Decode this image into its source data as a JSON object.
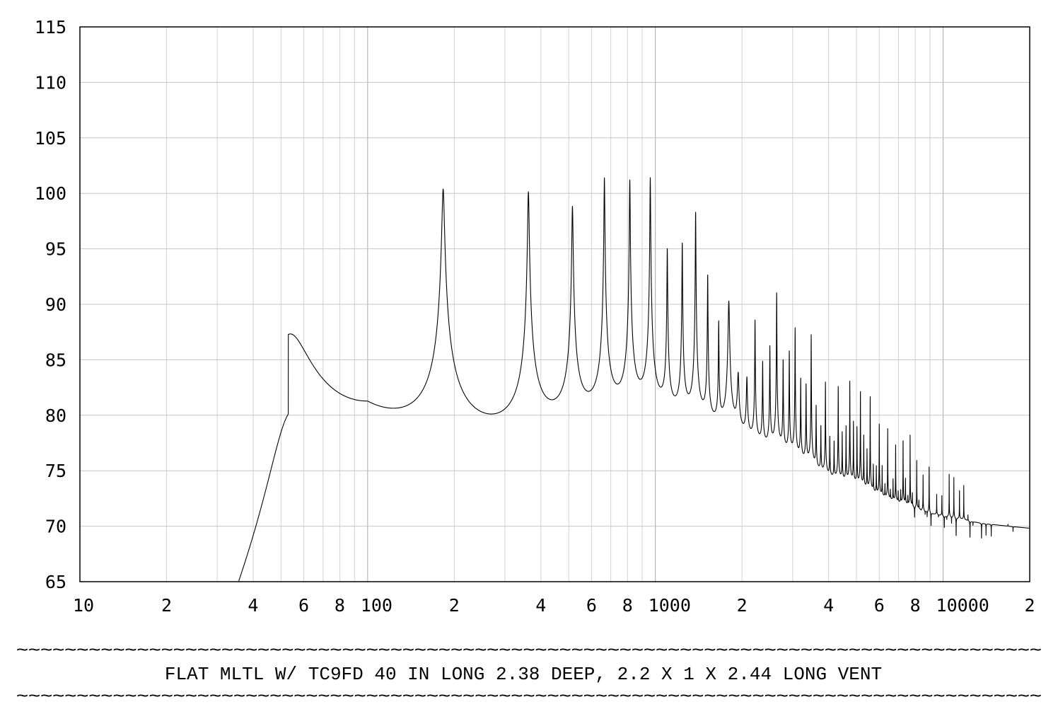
{
  "chart_data": {
    "type": "line",
    "title": "FLAT MLTL W/ TC9FD 40 IN LONG 2.38 DEEP, 2.2 X 1 X 2.44 LONG VENT",
    "title_rule": "~~~~~~~~~~~~~~~~~~~~~~~~~~~~~~~~~~~~~~~~~~~~~~~~~~~~~~~~~~~~~~~~~~~~~~~~~~~~~~~~~~~~~",
    "xlabel": "",
    "ylabel": "",
    "x_scale": "log",
    "xlim": [
      10,
      20000
    ],
    "ylim": [
      65,
      115
    ],
    "grid": true,
    "x_tick_labels": [
      {
        "value": 10,
        "label": "10"
      },
      {
        "value": 20,
        "label": "2"
      },
      {
        "value": 40,
        "label": "4"
      },
      {
        "value": 60,
        "label": "6"
      },
      {
        "value": 80,
        "label": "8"
      },
      {
        "value": 100,
        "label": "100"
      },
      {
        "value": 200,
        "label": "2"
      },
      {
        "value": 400,
        "label": "4"
      },
      {
        "value": 600,
        "label": "6"
      },
      {
        "value": 800,
        "label": "8"
      },
      {
        "value": 1000,
        "label": "1000"
      },
      {
        "value": 2000,
        "label": "2"
      },
      {
        "value": 4000,
        "label": "4"
      },
      {
        "value": 6000,
        "label": "6"
      },
      {
        "value": 8000,
        "label": "8"
      },
      {
        "value": 10000,
        "label": "10000"
      },
      {
        "value": 20000,
        "label": "2"
      }
    ],
    "y_ticks": [
      65,
      70,
      75,
      80,
      85,
      90,
      95,
      100,
      105,
      110,
      115
    ],
    "series": [
      {
        "name": "",
        "color": "#000000",
        "baseline": 68.8,
        "resonances": [
          {
            "f": 53,
            "peak": 90.9,
            "q": 3.5
          },
          {
            "f": 183,
            "peak": 100.0,
            "q": 55
          },
          {
            "f": 362,
            "peak": 99.7,
            "q": 90
          },
          {
            "f": 515,
            "peak": 98.2,
            "q": 110
          },
          {
            "f": 665,
            "peak": 100.9,
            "q": 160
          },
          {
            "f": 815,
            "peak": 100.7,
            "q": 180
          },
          {
            "f": 960,
            "peak": 100.9,
            "q": 200
          },
          {
            "f": 1100,
            "peak": 93.8,
            "q": 220
          },
          {
            "f": 1240,
            "peak": 94.5,
            "q": 240
          },
          {
            "f": 1380,
            "peak": 97.7,
            "q": 260
          },
          {
            "f": 1520,
            "peak": 91.3,
            "q": 280
          },
          {
            "f": 1660,
            "peak": 86.1,
            "q": 300
          },
          {
            "f": 1800,
            "peak": 88.9,
            "q": 100
          },
          {
            "f": 1940,
            "peak": 79.9,
            "q": 100
          },
          {
            "f": 2080,
            "peak": 79.8,
            "q": 150
          },
          {
            "f": 2220,
            "peak": 87.0,
            "q": 320
          },
          {
            "f": 2360,
            "peak": 82.3,
            "q": 340
          },
          {
            "f": 2500,
            "peak": 84.2,
            "q": 360
          },
          {
            "f": 2640,
            "peak": 90.1,
            "q": 380
          },
          {
            "f": 2780,
            "peak": 82.8,
            "q": 400
          },
          {
            "f": 2920,
            "peak": 83.9,
            "q": 420
          },
          {
            "f": 3060,
            "peak": 86.6,
            "q": 440
          },
          {
            "f": 3200,
            "peak": 81.1,
            "q": 460
          },
          {
            "f": 3340,
            "peak": 80.6,
            "q": 480
          },
          {
            "f": 3480,
            "peak": 86.1,
            "q": 500
          },
          {
            "f": 3620,
            "peak": 78.2,
            "q": 520
          },
          {
            "f": 3760,
            "peak": 75.9,
            "q": 540
          },
          {
            "f": 3900,
            "peak": 81.3,
            "q": 560
          },
          {
            "f": 4040,
            "peak": 74.8,
            "q": 580
          },
          {
            "f": 4180,
            "peak": 74.4,
            "q": 600
          },
          {
            "f": 4320,
            "peak": 81.2,
            "q": 620
          },
          {
            "f": 4460,
            "peak": 75.7,
            "q": 640
          },
          {
            "f": 4600,
            "peak": 76.5,
            "q": 660
          },
          {
            "f": 4740,
            "peak": 81.8,
            "q": 680
          },
          {
            "f": 4880,
            "peak": 77.2,
            "q": 700
          },
          {
            "f": 5020,
            "peak": 76.6,
            "q": 720
          },
          {
            "f": 5160,
            "peak": 81.0,
            "q": 740
          },
          {
            "f": 5300,
            "peak": 75.8,
            "q": 760
          },
          {
            "f": 5440,
            "peak": 74.2,
            "q": 780
          },
          {
            "f": 5580,
            "peak": 80.5,
            "q": 800
          },
          {
            "f": 5720,
            "peak": 72.7,
            "q": 820
          },
          {
            "f": 5860,
            "peak": 72.5,
            "q": 840
          },
          {
            "f": 6000,
            "peak": 78.0,
            "q": 860
          },
          {
            "f": 6140,
            "peak": 72.8,
            "q": 880
          },
          {
            "f": 6280,
            "peak": 70.7,
            "q": 900
          },
          {
            "f": 6420,
            "peak": 77.3,
            "q": 920
          },
          {
            "f": 6560,
            "peak": 70.1,
            "q": 940
          },
          {
            "f": 6700,
            "peak": 71.7,
            "q": 960
          },
          {
            "f": 6840,
            "peak": 75.8,
            "q": 980
          },
          {
            "f": 6980,
            "peak": 70.2,
            "q": 1000
          },
          {
            "f": 7120,
            "peak": 70.5,
            "q": 1020
          },
          {
            "f": 7260,
            "peak": 76.9,
            "q": 1040
          },
          {
            "f": 7400,
            "peak": 72.1,
            "q": 1060
          },
          {
            "f": 7540,
            "peak": 69.9,
            "q": 1080
          },
          {
            "f": 7680,
            "peak": 77.0,
            "q": 1100
          },
          {
            "f": 7820,
            "peak": 70.6,
            "q": 1120
          },
          {
            "f": 7960,
            "peak": 67.4,
            "q": 1140
          },
          {
            "f": 8100,
            "peak": 74.5,
            "q": 1160
          },
          {
            "f": 8240,
            "peak": 69.9,
            "q": 1180
          },
          {
            "f": 8380,
            "peak": 68.7,
            "q": 1200
          },
          {
            "f": 8520,
            "peak": 73.2,
            "q": 1220
          },
          {
            "f": 8660,
            "peak": 68.3,
            "q": 1240
          },
          {
            "f": 8800,
            "peak": 68.1,
            "q": 1260
          },
          {
            "f": 8940,
            "peak": 74.0,
            "q": 1280
          },
          {
            "f": 9080,
            "peak": 66.8,
            "q": 1300
          },
          {
            "f": 9500,
            "peak": 71.2,
            "q": 1340
          },
          {
            "f": 9640,
            "peak": 68.5,
            "q": 1360
          },
          {
            "f": 9900,
            "peak": 71.2,
            "q": 1380
          },
          {
            "f": 10100,
            "peak": 67.2,
            "q": 1400
          },
          {
            "f": 10300,
            "peak": 68.4,
            "q": 1420
          },
          {
            "f": 10500,
            "peak": 73.6,
            "q": 1440
          },
          {
            "f": 10700,
            "peak": 68.0,
            "q": 1460
          },
          {
            "f": 10900,
            "peak": 73.2,
            "q": 1480
          },
          {
            "f": 11100,
            "peak": 66.0,
            "q": 1500
          },
          {
            "f": 11400,
            "peak": 72.3,
            "q": 1520
          },
          {
            "f": 11800,
            "peak": 72.6,
            "q": 1560
          },
          {
            "f": 12200,
            "peak": 69.6,
            "q": 1600
          },
          {
            "f": 12400,
            "peak": 66.3,
            "q": 1620
          },
          {
            "f": 12700,
            "peak": 68.3,
            "q": 1650
          },
          {
            "f": 13600,
            "peak": 66.8,
            "q": 1700
          },
          {
            "f": 14100,
            "peak": 67.5,
            "q": 1750
          },
          {
            "f": 14700,
            "peak": 67.5,
            "q": 1800
          },
          {
            "f": 16800,
            "peak": 69.0,
            "q": 1900
          },
          {
            "f": 17500,
            "peak": 68.3,
            "q": 1950
          }
        ]
      }
    ]
  }
}
